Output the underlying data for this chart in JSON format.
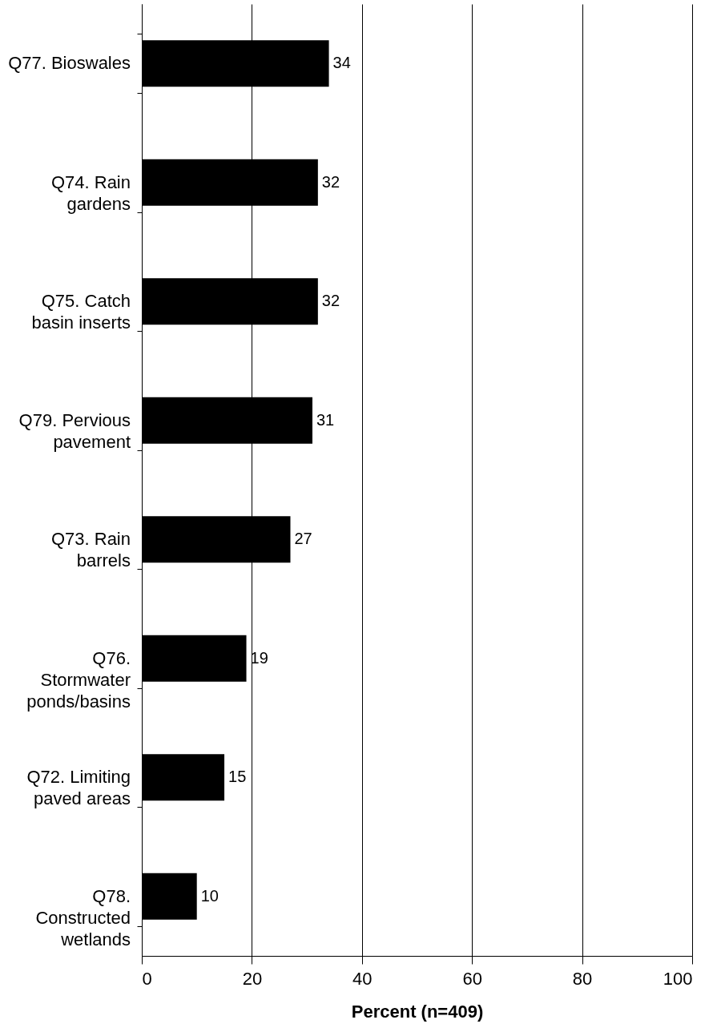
{
  "chart_data": {
    "type": "bar",
    "orientation": "horizontal",
    "categories": [
      "Q77. Bioswales",
      "Q74. Rain gardens",
      "Q75. Catch basin inserts",
      "Q79. Pervious pavement",
      "Q73. Rain barrels",
      "Q76. Stormwater ponds/basins",
      "Q72. Limiting paved areas",
      "Q78. Constructed wetlands"
    ],
    "values": [
      34,
      32,
      32,
      31,
      27,
      19,
      15,
      10
    ],
    "color": "#000000",
    "xlabel": "Percent (n=409)",
    "xlim": [
      0,
      100
    ],
    "xticks": [
      0,
      20,
      40,
      60,
      80,
      100
    ],
    "grid": "x",
    "data_labels": true
  }
}
